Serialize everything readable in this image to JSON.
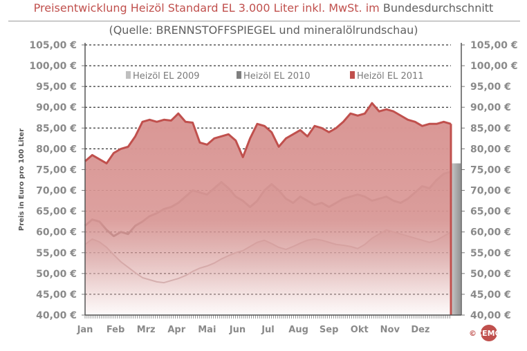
{
  "title": {
    "part_red": "Preisentwicklung Heizöl Standard EL 3.000 Liter inkl. MwSt. im",
    "part_gray": "Bundesdurchschnitt"
  },
  "subtitle": "(Quelle: BRENNSTOFFSPIEGEL  und mineralölrundschau)",
  "logo": {
    "copyright": "©",
    "text": "CEMO"
  },
  "colors": {
    "red": "#c0504d",
    "red_fill": "#d99694",
    "gray_dark": "#7f7f7f",
    "gray_light": "#bfbfbf",
    "grid": "#000000"
  },
  "chart_data": {
    "type": "area",
    "title": "Preisentwicklung Heizöl Standard EL 3.000 Liter inkl. MwSt. im Bundesdurchschnitt",
    "ylabel": "Preis in Euro pro 100 Liter",
    "xlabel": "",
    "categories": [
      "Jan",
      "Feb",
      "Mrz",
      "Apr",
      "Mai",
      "Jun",
      "Jul",
      "Aug",
      "Sep",
      "Okt",
      "Nov",
      "Dez"
    ],
    "ylim": [
      40,
      105
    ],
    "yticks": [
      "40,00 €",
      "45,00 €",
      "50,00 €",
      "55,00 €",
      "60,00 €",
      "65,00 €",
      "70,00 €",
      "75,00 €",
      "80,00 €",
      "85,00 €",
      "90,00 €",
      "95,00 €",
      "100,00 €",
      "105,00 €"
    ],
    "grid": "horizontal dashed",
    "legend_position": "top",
    "x_unit": "weeks of the year",
    "series": [
      {
        "name": "Heizöl EL 2009",
        "x": [
          0,
          1,
          2,
          3,
          4,
          5,
          6,
          7,
          8,
          9,
          10,
          11,
          12,
          13,
          14,
          15,
          16,
          17,
          18,
          19,
          20,
          21,
          22,
          23,
          24,
          25,
          26,
          27,
          28,
          29,
          30,
          31,
          32,
          33,
          34,
          35,
          36,
          37,
          38,
          39,
          40,
          41,
          42,
          43,
          44,
          45,
          46,
          47,
          48,
          49,
          50,
          51
        ],
        "values": [
          57.0,
          58.3,
          57.6,
          56.3,
          54.5,
          52.8,
          51.5,
          50.2,
          49.0,
          48.5,
          48.0,
          47.8,
          48.3,
          48.8,
          49.5,
          50.5,
          51.3,
          51.8,
          52.5,
          53.5,
          54.3,
          55.0,
          55.5,
          56.5,
          57.5,
          58.0,
          57.2,
          56.3,
          55.8,
          56.5,
          57.3,
          58.0,
          58.3,
          58.0,
          57.5,
          57.0,
          56.8,
          56.5,
          56.0,
          57.0,
          58.5,
          59.5,
          60.5,
          60.0,
          59.5,
          59.0,
          58.5,
          58.0,
          57.5,
          58.0,
          59.0,
          60.0
        ]
      },
      {
        "name": "Heizöl EL 2010",
        "x": [
          0,
          1,
          2,
          3,
          4,
          5,
          6,
          7,
          8,
          9,
          10,
          11,
          12,
          13,
          14,
          15,
          16,
          17,
          18,
          19,
          20,
          21,
          22,
          23,
          24,
          25,
          26,
          27,
          28,
          29,
          30,
          31,
          32,
          33,
          34,
          35,
          36,
          37,
          38,
          39,
          40,
          41,
          42,
          43,
          44,
          45,
          46,
          47,
          48,
          49,
          50,
          51
        ],
        "values": [
          61.5,
          63.0,
          62.5,
          60.5,
          59.0,
          60.0,
          59.5,
          61.5,
          62.5,
          63.8,
          64.5,
          65.5,
          66.0,
          67.0,
          68.5,
          70.0,
          69.5,
          69.0,
          70.5,
          72.0,
          70.5,
          68.5,
          67.5,
          66.0,
          67.5,
          70.0,
          71.5,
          70.0,
          68.0,
          67.0,
          68.5,
          67.5,
          66.5,
          67.0,
          66.0,
          67.0,
          68.0,
          68.5,
          69.0,
          68.5,
          67.5,
          68.0,
          68.5,
          67.5,
          67.0,
          68.0,
          69.5,
          71.0,
          70.5,
          72.5,
          74.0,
          74.5
        ]
      },
      {
        "name": "Heizöl EL 2011",
        "x": [
          0,
          1,
          2,
          3,
          4,
          5,
          6,
          7,
          8,
          9,
          10,
          11,
          12,
          13,
          14,
          15,
          16,
          17,
          18,
          19,
          20,
          21,
          22,
          23,
          24,
          25,
          26,
          27,
          28,
          29,
          30,
          31,
          32,
          33,
          34,
          35,
          36,
          37,
          38,
          39,
          40,
          41,
          42,
          43,
          44,
          45,
          46,
          47,
          48,
          49,
          50,
          51
        ],
        "values": [
          77.0,
          78.5,
          77.5,
          76.5,
          79.0,
          80.0,
          80.5,
          83.0,
          86.5,
          87.0,
          86.5,
          87.0,
          86.8,
          88.5,
          86.5,
          86.3,
          81.5,
          81.0,
          82.5,
          83.0,
          83.5,
          82.0,
          78.0,
          82.5,
          86.0,
          85.5,
          84.0,
          80.5,
          82.5,
          83.5,
          84.5,
          83.0,
          85.5,
          85.0,
          84.0,
          85.0,
          86.5,
          88.5,
          88.0,
          88.5,
          91.0,
          89.0,
          89.5,
          89.0,
          88.0,
          87.0,
          86.5,
          85.5,
          86.0,
          86.0,
          86.5,
          86.0
        ]
      }
    ]
  }
}
